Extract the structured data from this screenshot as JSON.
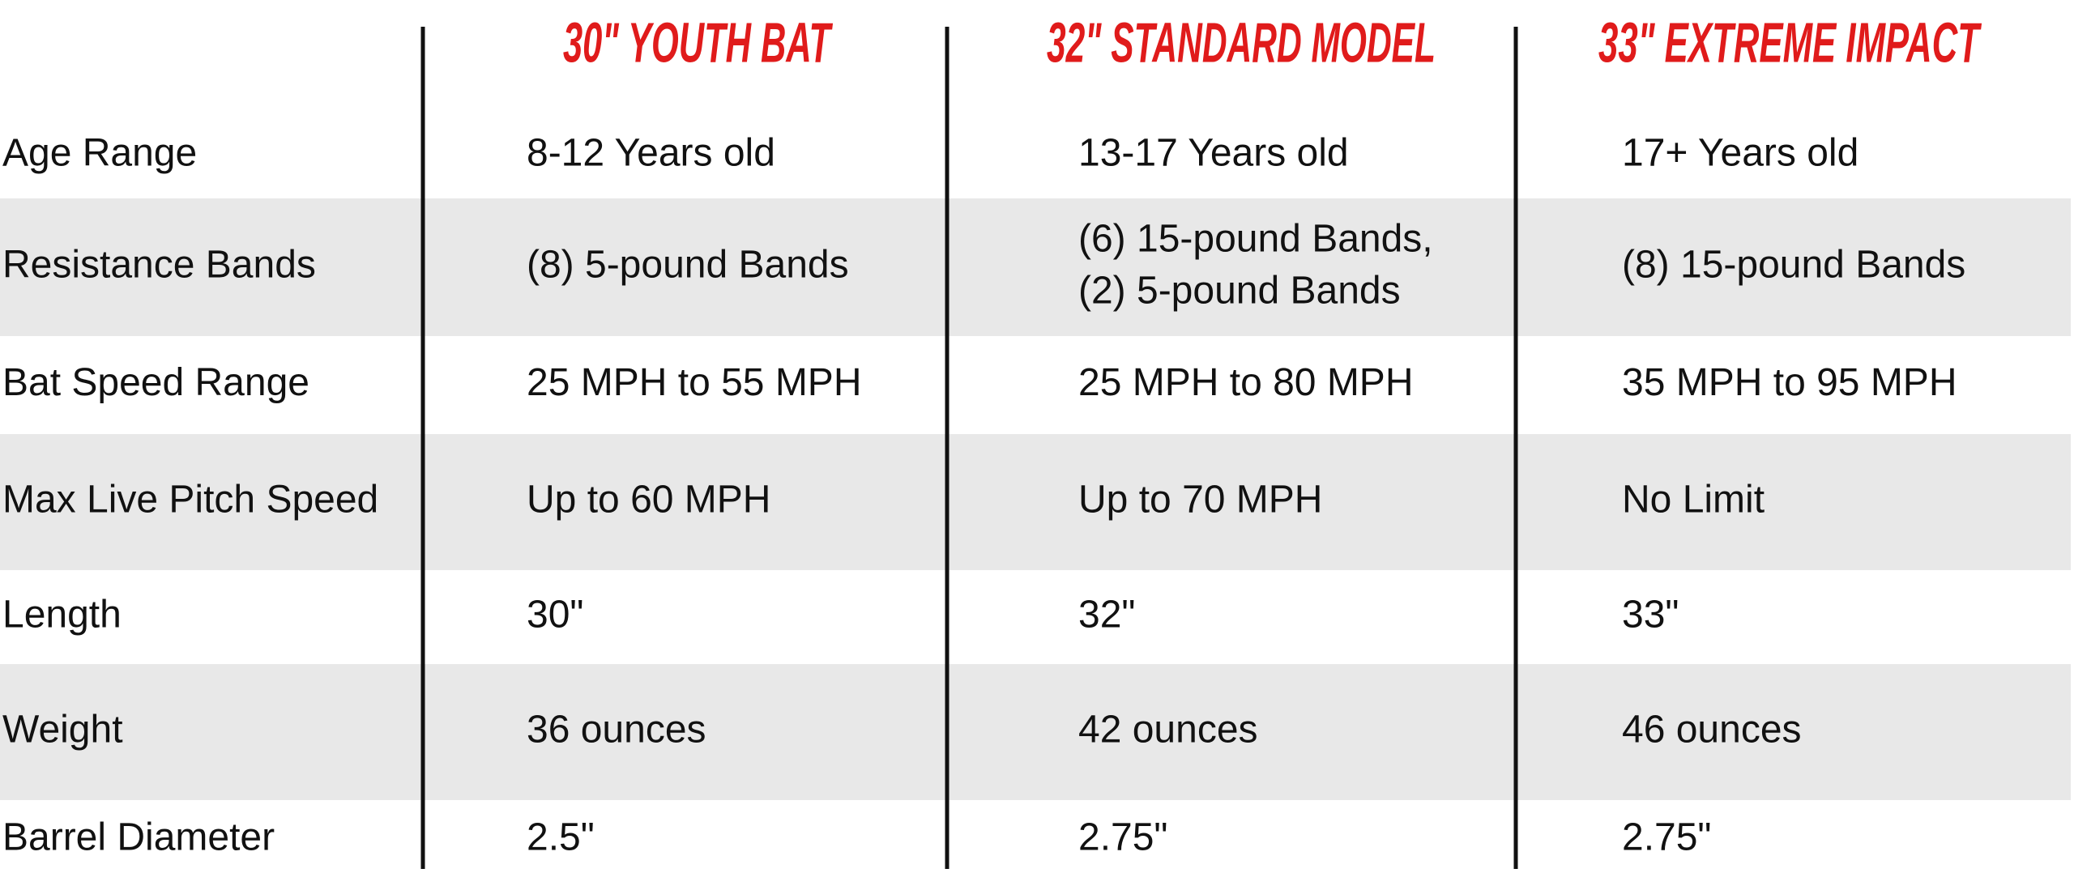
{
  "table": {
    "headers": [
      "30\" YOUTH BAT",
      "32\" STANDARD MODEL",
      "33\" EXTREME IMPACT"
    ],
    "rows": [
      {
        "label": "Age Range",
        "cells": [
          [
            "8-12 Years old"
          ],
          [
            "13-17 Years old"
          ],
          [
            "17+ Years old"
          ]
        ]
      },
      {
        "label": "Resistance Bands",
        "cells": [
          [
            "(8) 5-pound Bands"
          ],
          [
            "(6) 15-pound Bands,",
            "(2) 5-pound Bands"
          ],
          [
            "(8) 15-pound Bands"
          ]
        ]
      },
      {
        "label": "Bat Speed Range",
        "cells": [
          [
            "25 MPH to 55 MPH"
          ],
          [
            "25 MPH to 80 MPH"
          ],
          [
            "35 MPH to 95 MPH"
          ]
        ]
      },
      {
        "label": "Max Live Pitch Speed",
        "cells": [
          [
            "Up to 60 MPH"
          ],
          [
            "Up to 70 MPH"
          ],
          [
            "No Limit"
          ]
        ]
      },
      {
        "label": "Length",
        "cells": [
          [
            "30\""
          ],
          [
            "32\""
          ],
          [
            "33\""
          ]
        ]
      },
      {
        "label": "Weight",
        "cells": [
          [
            "36 ounces"
          ],
          [
            "42 ounces"
          ],
          [
            "46 ounces"
          ]
        ]
      },
      {
        "label": "Barrel Diameter",
        "cells": [
          [
            "2.5\""
          ],
          [
            "2.75\""
          ],
          [
            "2.75\""
          ]
        ]
      }
    ]
  }
}
